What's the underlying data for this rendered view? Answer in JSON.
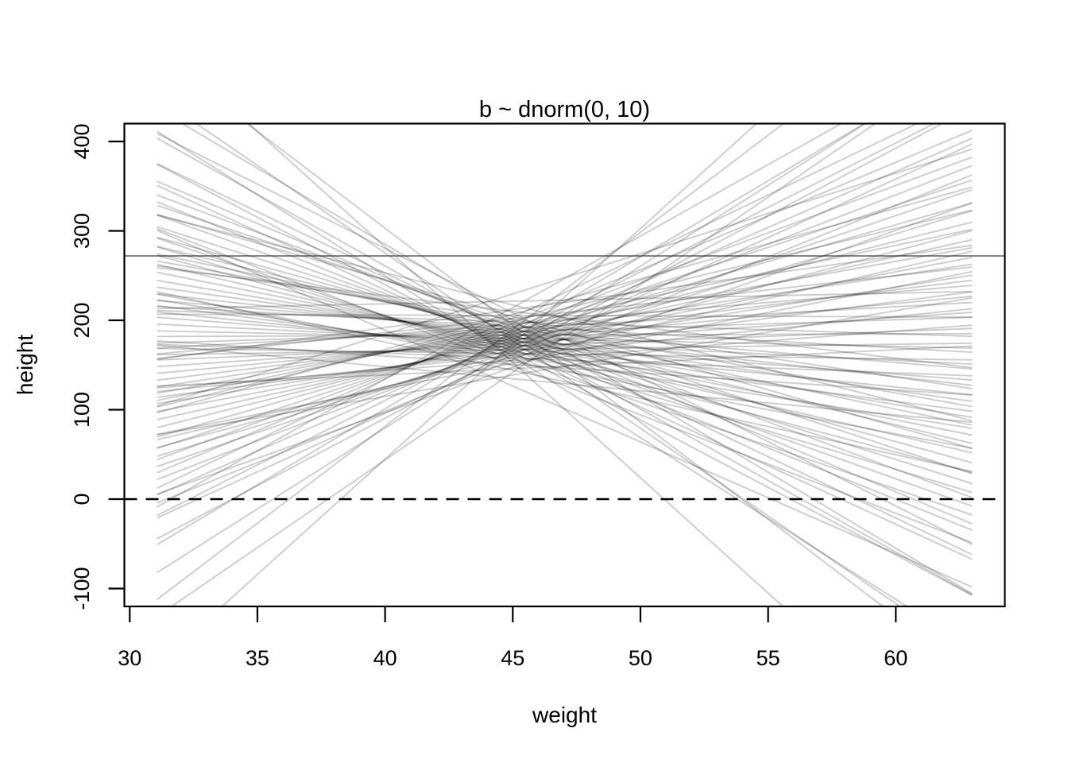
{
  "figure": {
    "title": "b ~ dnorm(0, 10)",
    "xlabel": "weight",
    "ylabel": "height"
  },
  "colors": {
    "background": "#ffffff",
    "text": "#000000",
    "box": "#000000",
    "sample_line": "#000000",
    "sample_line_opacity": 0.2,
    "solid_reference": "#3a3a3a",
    "dashed_reference": "#000000"
  },
  "chart_data": {
    "type": "line",
    "title": "b ~ dnorm(0, 10)",
    "xlabel": "weight",
    "ylabel": "height",
    "x_ticks": [
      30,
      35,
      40,
      45,
      50,
      55,
      60
    ],
    "y_ticks": [
      -100,
      0,
      100,
      200,
      300,
      400
    ],
    "xlim": [
      29.79,
      64.27
    ],
    "ylim": [
      -120,
      420
    ],
    "grid": "off",
    "legend": "none",
    "x_data_range": [
      31.07,
      62.99
    ],
    "pivot_x": 45,
    "reference_lines": [
      {
        "y": 272,
        "style": "solid"
      },
      {
        "y": 0,
        "style": "dashed"
      }
    ],
    "lines_note": "each entry is [height_at_pivot_x, slope]; line spans x_data_range, y = a + b*(x - pivot_x)",
    "lines": [
      [
        149.2,
        -11.0
      ],
      [
        183.3,
        0.1
      ],
      [
        155.9,
        11.5
      ],
      [
        186.5,
        -6.9
      ],
      [
        160.8,
        2.9
      ],
      [
        190.0,
        21.7
      ],
      [
        164.8,
        -3.7
      ],
      [
        193.8,
        6.0
      ],
      [
        168.4,
        -13.1
      ],
      [
        198.3,
        -0.9
      ],
      [
        171.6,
        9.7
      ],
      [
        204.2,
        -8.2
      ],
      [
        174.7,
        1.9
      ],
      [
        214.2,
        16.0
      ],
      [
        177.7,
        -4.8
      ],
      [
        138.8,
        4.8
      ],
      [
        180.8,
        -16.0
      ],
      [
        150.6,
        -1.9
      ],
      [
        183.8,
        8.2
      ],
      [
        156.8,
        -9.7
      ],
      [
        187.1,
        0.9
      ],
      [
        161.5,
        13.1
      ],
      [
        190.6,
        -6.0
      ],
      [
        165.4,
        3.7
      ],
      [
        194.5,
        -21.7
      ],
      [
        168.9,
        -2.9
      ],
      [
        199.2,
        6.9
      ],
      [
        172.2,
        -11.5
      ],
      [
        205.4,
        -0.1
      ],
      [
        175.2,
        11.0
      ],
      [
        217.2,
        -7.2
      ],
      [
        178.3,
        2.7
      ],
      [
        141.8,
        19.6
      ],
      [
        181.3,
        -4.0
      ],
      [
        151.8,
        5.7
      ],
      [
        184.4,
        -13.7
      ],
      [
        157.7,
        -1.1
      ],
      [
        187.6,
        9.4
      ],
      [
        162.2,
        -8.6
      ],
      [
        191.2,
        1.6
      ],
      [
        166.0,
        15.1
      ],
      [
        195.2,
        -5.1
      ],
      [
        169.5,
        4.5
      ],
      [
        200.1,
        -17.0
      ],
      [
        172.7,
        -2.2
      ],
      [
        206.8,
        7.9
      ],
      [
        175.7,
        -10.2
      ],
      [
        221.4,
        0.6
      ],
      [
        178.8,
        12.5
      ],
      [
        144.1,
        -6.3
      ],
      [
        181.8,
        3.5
      ],
      [
        152.9,
        -25.8
      ],
      [
        184.9,
        -3.2
      ],
      [
        158.5,
        6.6
      ],
      [
        188.2,
        -12.0
      ],
      [
        162.9,
        -0.4
      ],
      [
        191.8,
        10.6
      ],
      [
        166.6,
        -7.6
      ],
      [
        195.9,
        2.4
      ],
      [
        170.0,
        18.1
      ],
      [
        201.0,
        -4.3
      ],
      [
        173.2,
        5.4
      ],
      [
        208.3,
        -14.4
      ],
      [
        176.2,
        -1.4
      ],
      [
        229.5,
        9.0
      ],
      [
        179.3,
        -9.0
      ],
      [
        146.0,
        1.4
      ],
      [
        182.3,
        14.4
      ],
      [
        154.0,
        -5.4
      ],
      [
        185.4,
        4.3
      ],
      [
        159.3,
        -18.1
      ],
      [
        188.8,
        -2.4
      ],
      [
        163.6,
        7.6
      ],
      [
        192.4,
        -10.6
      ],
      [
        167.2,
        0.4
      ],
      [
        196.7,
        12.0
      ],
      [
        170.6,
        -6.6
      ],
      [
        202.0,
        3.2
      ],
      [
        173.7,
        25.8
      ],
      [
        210.0,
        -3.5
      ],
      [
        176.7,
        6.3
      ],
      [
        126.5,
        -12.5
      ],
      [
        179.8,
        -0.6
      ],
      [
        147.7,
        10.2
      ],
      [
        182.8,
        -7.9
      ],
      [
        155.0,
        2.2
      ],
      [
        186.0,
        17.0
      ],
      [
        160.1,
        -4.5
      ],
      [
        189.4,
        5.1
      ],
      [
        164.2,
        -15.1
      ],
      [
        193.1,
        -1.6
      ],
      [
        167.8,
        8.6
      ],
      [
        197.5,
        -9.4
      ],
      [
        171.1,
        1.1
      ],
      [
        203.1,
        13.7
      ],
      [
        174.2,
        -5.7
      ],
      [
        211.9,
        4.0
      ],
      [
        177.2,
        -19.6
      ],
      [
        134.6,
        -2.7
      ],
      [
        180.3,
        7.2
      ]
    ]
  }
}
